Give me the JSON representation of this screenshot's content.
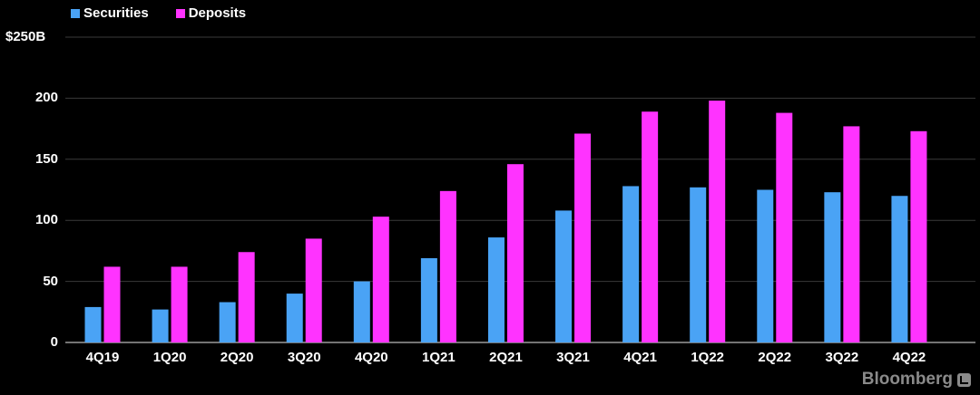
{
  "chart_data": {
    "type": "bar",
    "categories": [
      "4Q19",
      "1Q20",
      "2Q20",
      "3Q20",
      "4Q20",
      "1Q21",
      "2Q21",
      "3Q21",
      "4Q21",
      "1Q22",
      "2Q22",
      "3Q22",
      "4Q22"
    ],
    "series": [
      {
        "name": "Securities",
        "color": "#4aa3f5",
        "values": [
          29,
          27,
          33,
          40,
          50,
          69,
          86,
          108,
          128,
          127,
          125,
          123,
          120
        ]
      },
      {
        "name": "Deposits",
        "color": "#ff33ff",
        "values": [
          62,
          62,
          74,
          85,
          103,
          124,
          146,
          171,
          189,
          198,
          188,
          177,
          173
        ]
      }
    ],
    "ylim": [
      0,
      250
    ],
    "yticks": [
      0,
      50,
      100,
      150,
      200
    ],
    "ytick_labels": [
      "0",
      "50",
      "100",
      "150",
      "200"
    ],
    "y_top_label": "$250B",
    "legend_position": "top-left",
    "grid": true,
    "source": "Bloomberg"
  }
}
